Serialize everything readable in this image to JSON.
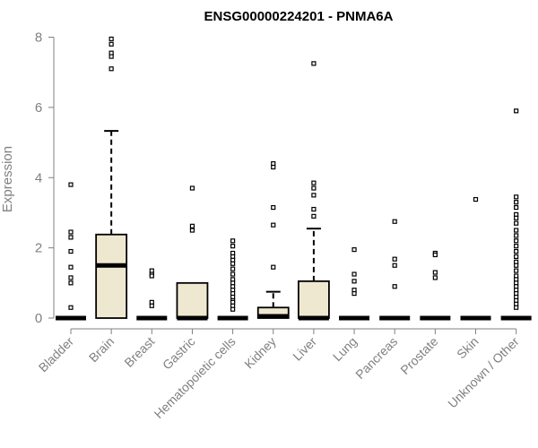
{
  "chart_data": {
    "type": "box",
    "title": "ENSG00000224201 - PNMA6A",
    "xlabel": "",
    "ylabel": "Expression",
    "ylim": [
      0,
      8
    ],
    "yticks": [
      0,
      2,
      4,
      6,
      8
    ],
    "box_fill": "#efe8d0",
    "box_stroke": "#000000",
    "categories": [
      "Bladder",
      "Brain",
      "Breast",
      "Gastric",
      "Hematopoietic cells",
      "Kidney",
      "Liver",
      "Lung",
      "Pancreas",
      "Prostate",
      "Skin",
      "Unknown / Other"
    ],
    "boxes": [
      {
        "q1": 0,
        "median": 0,
        "q3": 0,
        "whisker_low": 0,
        "whisker_high": 0,
        "outliers": [
          3.8,
          2.45,
          2.3,
          1.9,
          1.45,
          1.15,
          1.0,
          0.3
        ]
      },
      {
        "q1": 0,
        "median": 1.5,
        "q3": 2.38,
        "whisker_low": 0,
        "whisker_high": 5.33,
        "outliers": [
          7.95,
          7.8,
          7.55,
          7.45,
          7.1
        ]
      },
      {
        "q1": 0,
        "median": 0,
        "q3": 0,
        "whisker_low": 0,
        "whisker_high": 0,
        "outliers": [
          1.35,
          1.25,
          1.2,
          0.45,
          0.35
        ]
      },
      {
        "q1": 0,
        "median": 0,
        "q3": 1.0,
        "whisker_low": 0,
        "whisker_high": 1.0,
        "outliers": [
          3.7,
          2.62,
          2.5
        ]
      },
      {
        "q1": 0,
        "median": 0,
        "q3": 0,
        "whisker_low": 0,
        "whisker_high": 0,
        "outliers": [
          2.2,
          2.05,
          1.85,
          1.75,
          1.65,
          1.55,
          1.4,
          1.25,
          1.1,
          1.0,
          0.9,
          0.8,
          0.7,
          0.6,
          0.5,
          0.45,
          0.35,
          0.25
        ]
      },
      {
        "q1": 0,
        "median": 0.05,
        "q3": 0.3,
        "whisker_low": 0,
        "whisker_high": 0.75,
        "outliers": [
          4.4,
          4.3,
          3.15,
          2.65,
          1.45
        ]
      },
      {
        "q1": 0,
        "median": 0,
        "q3": 1.05,
        "whisker_low": 0,
        "whisker_high": 2.55,
        "outliers": [
          7.25,
          3.85,
          3.7,
          3.5,
          3.1,
          2.9
        ]
      },
      {
        "q1": 0,
        "median": 0,
        "q3": 0,
        "whisker_low": 0,
        "whisker_high": 0,
        "outliers": [
          1.95,
          1.25,
          1.05,
          0.8,
          0.7
        ]
      },
      {
        "q1": 0,
        "median": 0,
        "q3": 0,
        "whisker_low": 0,
        "whisker_high": 0,
        "outliers": [
          2.75,
          1.68,
          1.5,
          0.9
        ]
      },
      {
        "q1": 0,
        "median": 0,
        "q3": 0,
        "whisker_low": 0,
        "whisker_high": 0,
        "outliers": [
          1.85,
          1.8,
          1.3,
          1.15
        ]
      },
      {
        "q1": 0,
        "median": 0,
        "q3": 0,
        "whisker_low": 0,
        "whisker_high": 0,
        "outliers": [
          3.38
        ]
      },
      {
        "q1": 0,
        "median": 0,
        "q3": 0,
        "whisker_low": 0,
        "whisker_high": 0,
        "outliers": [
          5.9,
          3.45,
          3.3,
          3.15,
          2.95,
          2.85,
          2.7,
          2.5,
          2.35,
          2.2,
          2.05,
          1.9,
          1.75,
          1.6,
          1.5,
          1.35,
          1.2,
          1.1,
          1.0,
          0.9,
          0.8,
          0.7,
          0.6,
          0.5,
          0.4,
          0.3
        ]
      }
    ]
  }
}
